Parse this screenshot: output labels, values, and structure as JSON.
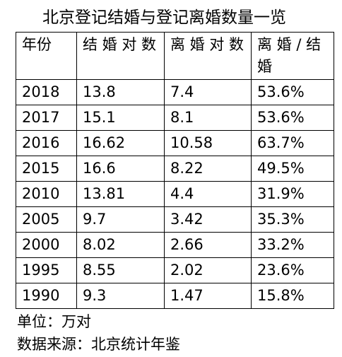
{
  "title": "北京登记结婚与登记离婚数量一览",
  "table": {
    "header": [
      "年份",
      "结 婚 对 数",
      "离 婚 对 数",
      "离 婚 / 结 婚"
    ],
    "rows": [
      [
        "2018",
        "13.8",
        "7.4",
        "53.6%"
      ],
      [
        "2017",
        "15.1",
        "8.1",
        "53.6%"
      ],
      [
        "2016",
        "16.62",
        "10.58",
        "63.7%"
      ],
      [
        "2015",
        "16.6",
        "8.22",
        "49.5%"
      ],
      [
        "2010",
        "13.81",
        "4.4",
        "31.9%"
      ],
      [
        "2005",
        "9.7",
        "3.42",
        "35.3%"
      ],
      [
        "2000",
        "8.02",
        "2.66",
        "33.2%"
      ],
      [
        "1995",
        "8.55",
        "2.02",
        "23.6%"
      ],
      [
        "1990",
        "9.3",
        "1.47",
        "15.8%"
      ]
    ]
  },
  "notes": [
    "单位：万对",
    "数据来源：北京统计年鉴"
  ]
}
